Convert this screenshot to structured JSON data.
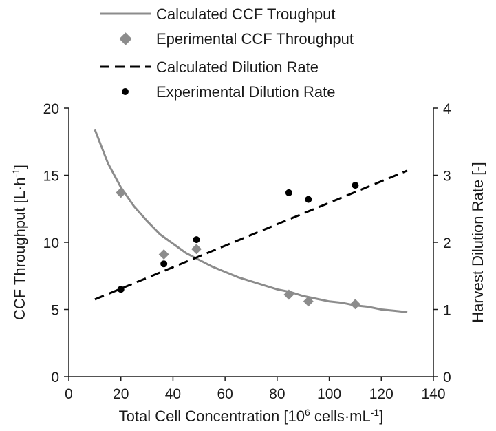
{
  "chart_data": {
    "type": "scatter",
    "xlabel": "Total Cell Concentration [10",
    "xlabel_sup": "6",
    "xlabel_mid": " cells·mL",
    "xlabel_sup2": "-1",
    "xlabel_end": "]",
    "ylabel": "CCF Throughput [L·h",
    "ylabel_sup": "-1",
    "ylabel_end": "]",
    "y2label": "Harvest Dilution Rate [-]",
    "xlim": [
      0,
      140
    ],
    "ylim": [
      0,
      20
    ],
    "y2lim": [
      0,
      4
    ],
    "xticks": [
      "0",
      "20",
      "40",
      "60",
      "80",
      "100",
      "120",
      "140"
    ],
    "yticks": [
      "0",
      "5",
      "10",
      "15",
      "20"
    ],
    "y2ticks": [
      "0",
      "1",
      "2",
      "3",
      "4"
    ],
    "legend": [
      {
        "label": "Calculated CCF Troughput",
        "style": "solid-line",
        "color": "#8c8c8c"
      },
      {
        "label": "Eperimental CCF Throughput",
        "style": "diamond",
        "color": "#8c8c8c"
      },
      {
        "label": "Calculated Dilution Rate",
        "style": "dashed-line",
        "color": "#000000"
      },
      {
        "label": "Experimental Dilution Rate",
        "style": "circle",
        "color": "#000000"
      }
    ],
    "series": [
      {
        "name": "Calculated CCF Troughput",
        "axis": "left",
        "type": "line",
        "color": "#8c8c8c",
        "x": [
          10,
          15,
          20,
          25,
          30,
          35,
          40,
          45,
          50,
          55,
          60,
          65,
          70,
          75,
          80,
          85,
          90,
          95,
          100,
          105,
          110,
          115,
          120,
          125,
          130
        ],
        "y": [
          18.4,
          15.9,
          14.1,
          12.7,
          11.6,
          10.6,
          9.9,
          9.2,
          8.7,
          8.2,
          7.8,
          7.4,
          7.1,
          6.8,
          6.5,
          6.3,
          6.0,
          5.8,
          5.6,
          5.5,
          5.3,
          5.2,
          5.0,
          4.9,
          4.8
        ]
      },
      {
        "name": "Eperimental CCF Throughput",
        "axis": "left",
        "type": "scatter",
        "marker": "diamond",
        "color": "#8c8c8c",
        "x": [
          20,
          36.5,
          49,
          84.5,
          92,
          110
        ],
        "y": [
          13.7,
          9.1,
          9.5,
          6.1,
          5.6,
          5.4
        ]
      },
      {
        "name": "Calculated Dilution Rate",
        "axis": "right",
        "type": "line",
        "dash": true,
        "color": "#000000",
        "x": [
          10,
          130
        ],
        "y": [
          1.15,
          3.07
        ]
      },
      {
        "name": "Experimental Dilution Rate",
        "axis": "right",
        "type": "scatter",
        "marker": "circle",
        "color": "#000000",
        "x": [
          20,
          36.5,
          49,
          84.5,
          92,
          110
        ],
        "y": [
          1.3,
          1.68,
          2.04,
          2.74,
          2.64,
          2.85
        ]
      }
    ]
  }
}
